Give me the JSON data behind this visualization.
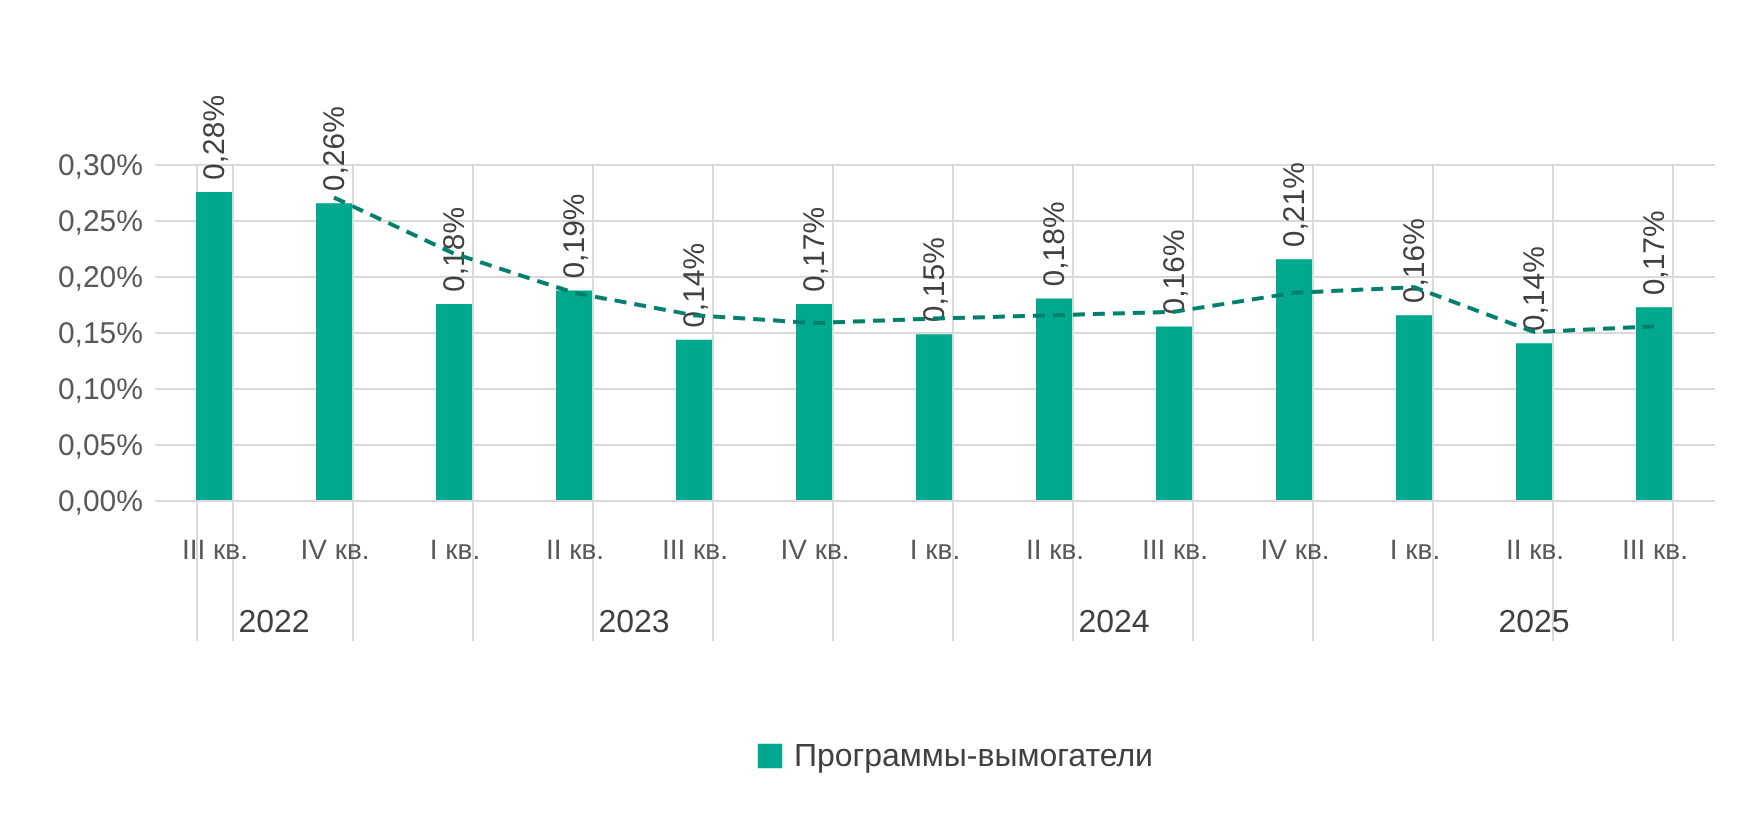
{
  "chart_data": {
    "type": "bar",
    "categories": [
      "III кв.",
      "IV кв.",
      "I кв.",
      "II кв.",
      "III кв.",
      "IV кв.",
      "I кв.",
      "II кв.",
      "III кв.",
      "IV кв.",
      "I кв.",
      "II кв.",
      "III кв."
    ],
    "series": [
      {
        "name": "Программы-вымогатели",
        "color": "#00a88e",
        "values": [
          0.275,
          0.265,
          0.175,
          0.187,
          0.143,
          0.175,
          0.148,
          0.18,
          0.155,
          0.215,
          0.165,
          0.14,
          0.172
        ],
        "value_labels": [
          "0,28%",
          "0,26%",
          "0,18%",
          "0,19%",
          "0,14%",
          "0,17%",
          "0,15%",
          "0,18%",
          "0,16%",
          "0,21%",
          "0,16%",
          "0,14%",
          "0,17%"
        ]
      },
      {
        "type": "line",
        "color": "#00806a",
        "line_style": "dashed",
        "marker": "none",
        "values": [
          null,
          0.27,
          0.22,
          0.185,
          0.165,
          0.158,
          0.162,
          0.165,
          0.168,
          0.185,
          0.19,
          0.15,
          0.155
        ]
      }
    ],
    "ylim": [
      0,
      0.3
    ],
    "yticks": [
      {
        "value": 0,
        "label": "0,00%"
      },
      {
        "value": 0.05,
        "label": "0,05%"
      },
      {
        "value": 0.1,
        "label": "0,10%"
      },
      {
        "value": 0.15,
        "label": "0,15%"
      },
      {
        "value": 0.2,
        "label": "0,20%"
      },
      {
        "value": 0.25,
        "label": "0,25%"
      },
      {
        "value": 0.3,
        "label": "0,30%"
      }
    ],
    "annotations": [
      "2022",
      "2023",
      "2024",
      "2025"
    ],
    "grid": true,
    "legend": "bottom"
  }
}
